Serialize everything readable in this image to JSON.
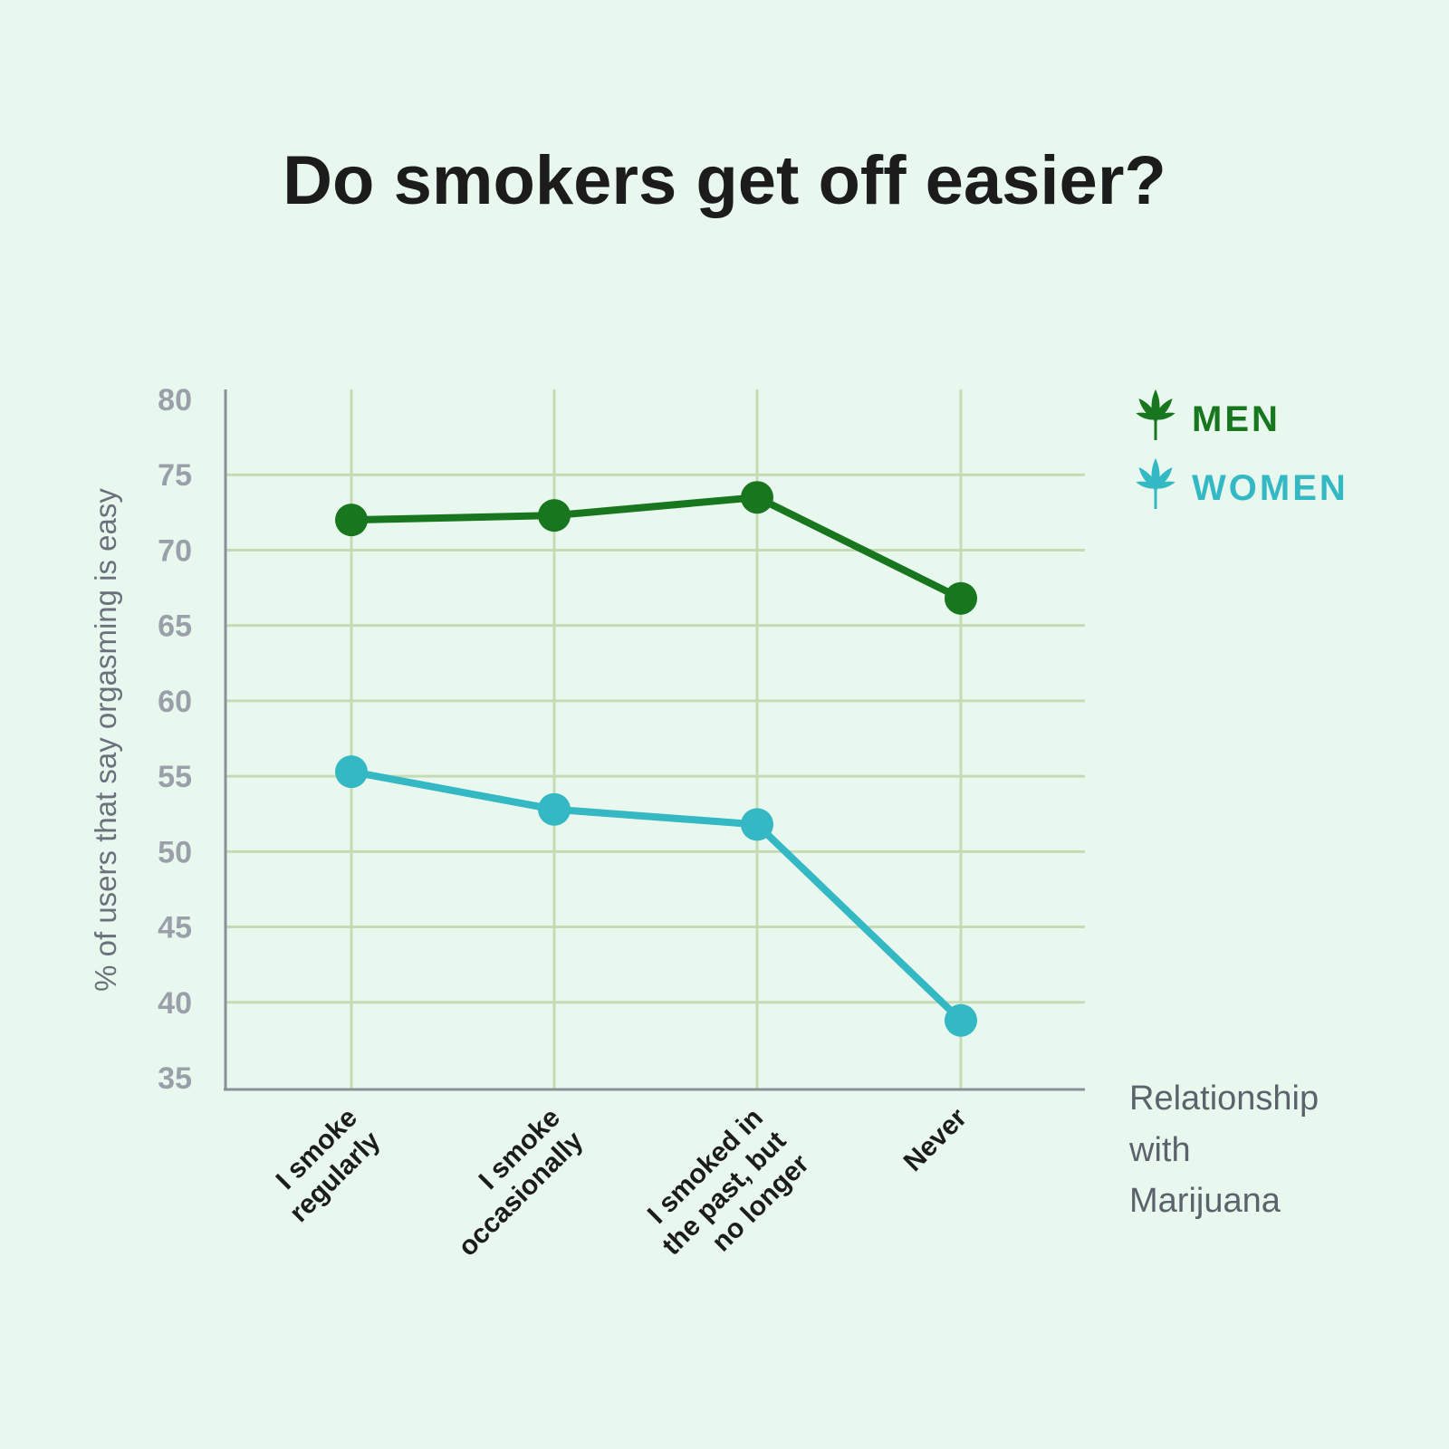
{
  "chart_data": {
    "type": "line",
    "title": "Do smokers get off easier?",
    "ylabel": "% of users that say orgasming is easy",
    "xlabel_lines": [
      "Relationship",
      "with",
      "Marijuana"
    ],
    "categories": [
      [
        "I smoke",
        "regularly"
      ],
      [
        "I smoke",
        "occasionally"
      ],
      [
        "I smoked in",
        "the past, but",
        "no longer"
      ],
      [
        "Never"
      ]
    ],
    "yticks": [
      35,
      40,
      45,
      50,
      55,
      60,
      65,
      70,
      75,
      80
    ],
    "ylim": [
      35,
      80
    ],
    "grid": true,
    "legend_position": "top-right",
    "series": [
      {
        "name": "MEN",
        "color": "#18761e",
        "icon": "cannabis-leaf-icon",
        "values": [
          72.0,
          72.3,
          73.5,
          66.8
        ]
      },
      {
        "name": "WOMEN",
        "color": "#33b8c4",
        "icon": "cannabis-leaf-icon",
        "values": [
          55.3,
          52.8,
          51.8,
          38.8
        ]
      }
    ]
  }
}
